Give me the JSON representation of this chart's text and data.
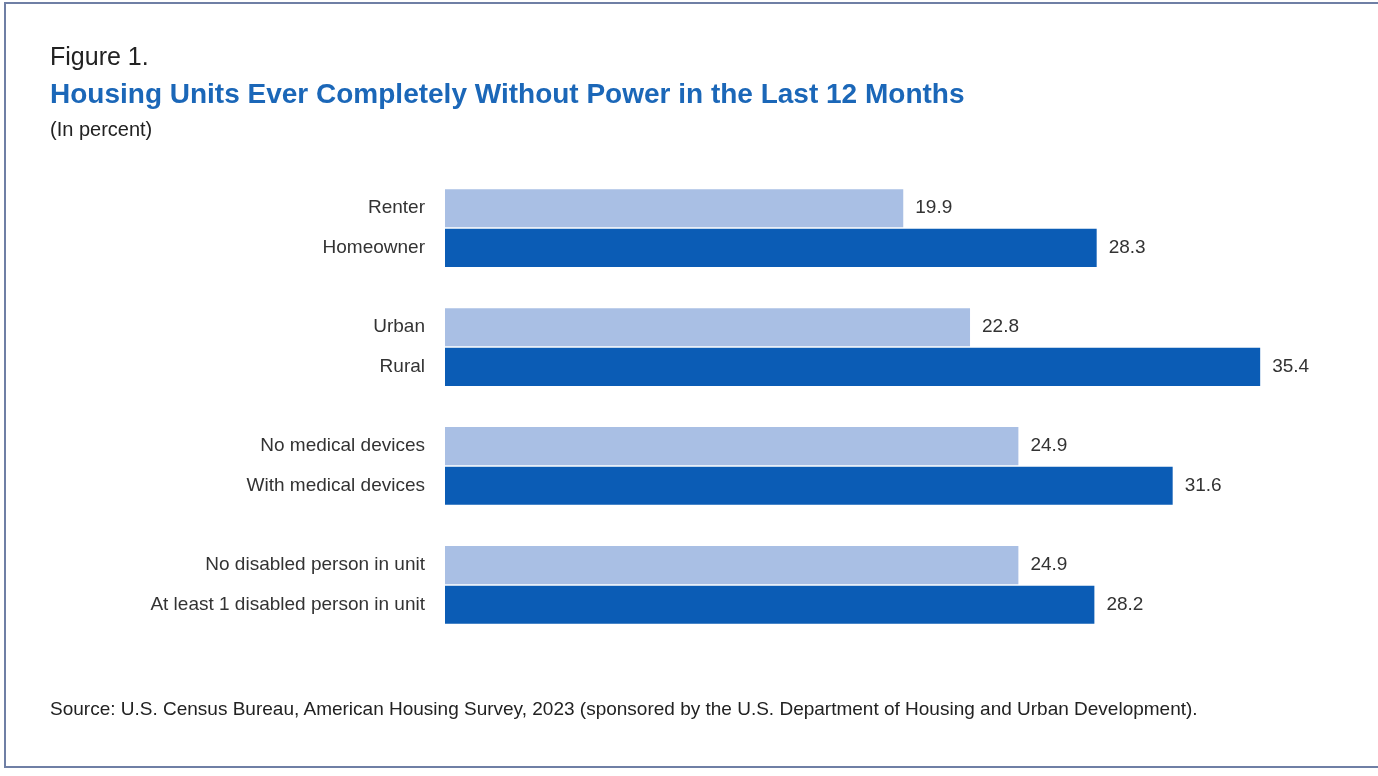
{
  "chart_data": {
    "type": "bar",
    "orientation": "horizontal",
    "title": "Housing Units Ever Completely Without Power in the Last 12 Months",
    "subtitle": "(In percent)",
    "categories": [
      "Renter",
      "Homeowner",
      null,
      "Urban",
      "Rural",
      null,
      "No medical devices",
      "With medical devices",
      null,
      "No disabled person in unit",
      "At least 1 disabled person in unit"
    ],
    "values": [
      19.9,
      28.3,
      null,
      22.8,
      35.4,
      null,
      24.9,
      31.6,
      null,
      24.9,
      28.2
    ],
    "colors": [
      "#a9bfe4",
      "#0b5cb5",
      "#ffffff",
      "#a9bfe4",
      "#0b5cb5",
      "#ffffff",
      "#a9bfe4",
      "#0b5cb5",
      "#ffffff",
      "#a9bfe4",
      "#0b5cb5"
    ],
    "data_labels": true,
    "annotations": [
      "Figure 1.",
      "Source: U.S. Census Bureau, American Housing Survey, 2023 (sponsored by the U.S. Department of Housing and Urban Development)."
    ]
  }
}
